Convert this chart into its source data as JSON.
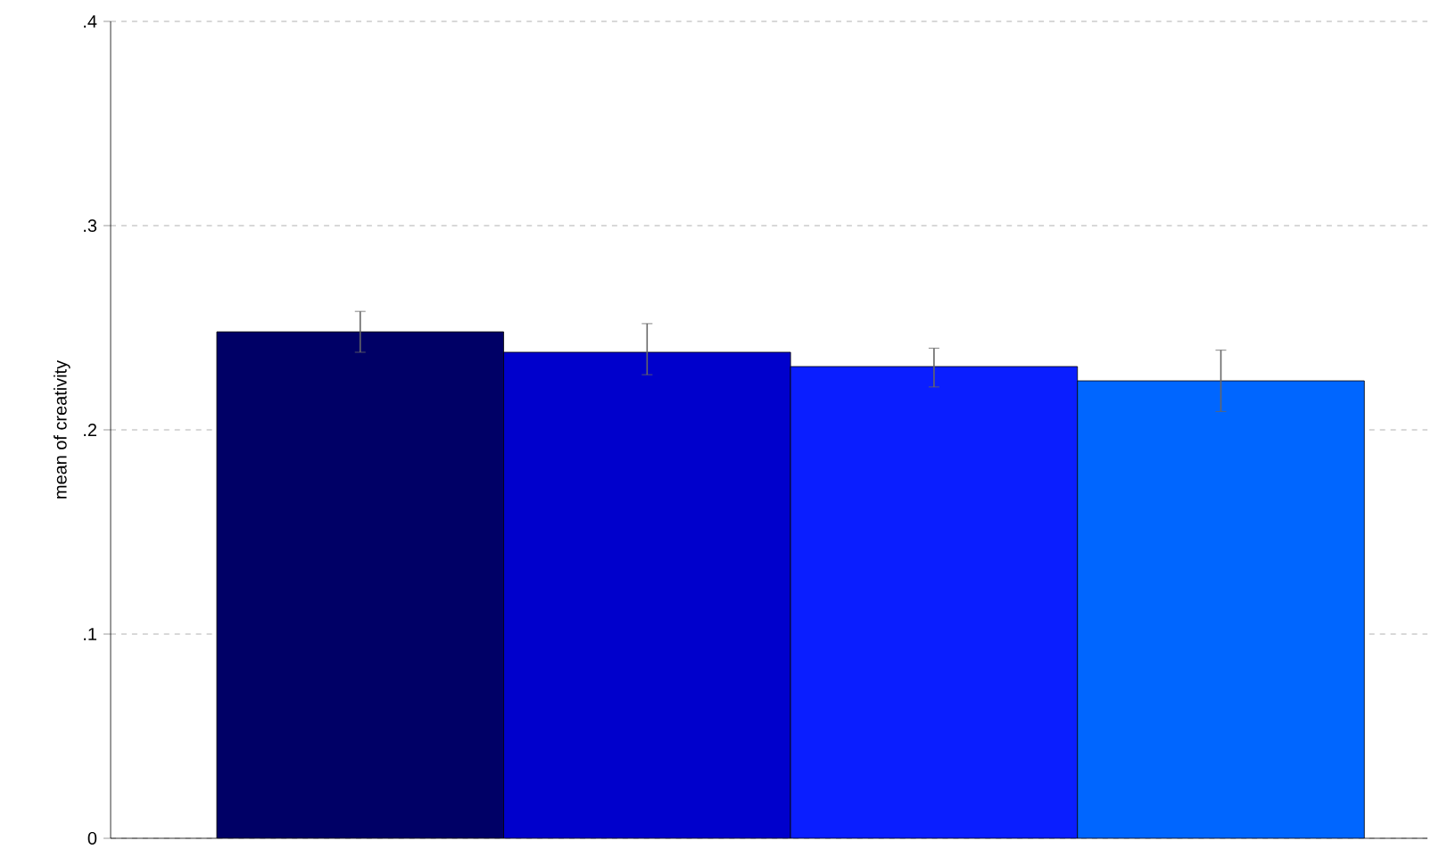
{
  "chart_data": {
    "type": "bar",
    "ylabel": "mean of creativity",
    "categories": [
      null,
      null,
      null,
      null
    ],
    "values": [
      0.248,
      0.238,
      0.231,
      0.224
    ],
    "colors": [
      "#000066",
      "#0000cc",
      "#0a1eff",
      "#0066ff"
    ],
    "errors": [
      [
        0.238,
        0.258
      ],
      [
        0.227,
        0.252
      ],
      [
        0.221,
        0.24
      ],
      [
        0.209,
        0.239
      ]
    ],
    "ylim": [
      0,
      0.4
    ],
    "yticks": [
      {
        "value": 0,
        "label": "0"
      },
      {
        "value": 0.1,
        "label": ".1"
      },
      {
        "value": 0.2,
        "label": ".2"
      },
      {
        "value": 0.3,
        "label": ".3"
      },
      {
        "value": 0.4,
        "label": ".4"
      }
    ],
    "grid": "y"
  }
}
